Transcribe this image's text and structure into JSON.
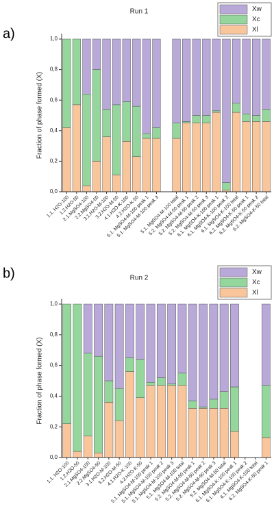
{
  "chart_data": [
    {
      "type": "stacked_bar",
      "panel_label": "a)",
      "title": "Run 1",
      "y_label": "Fraction of phase formed (X)",
      "categories": [
        "1.1. H2O-100",
        "1.2.H2O-50",
        "2.1.MgSO4-100",
        "2.2.MgSO4-50",
        "3.1.H2O-M-100",
        "3.2.H2O-M-50",
        "4.1.H2O-K-100",
        "4.2.H2O-K-50",
        "5.1. MgSO4-M-100 peak 1",
        "5.1. MgSO4-M-100 peak 3",
        null,
        "5.1. MgSO4-M-100 total",
        "5.2. MgSO4-M-50 peak 1",
        "5.2. MgSO4-M-50 peak 2",
        "5.2. MgSO4-M-50 peak 3",
        "6.1. MgSO4-K-100 peak 1",
        "6.1. MgSO4-K-100 peak 2",
        "6.1. MgSO4-K-100 total",
        "6.2. MgSO4-K-50 peak 1",
        "6.2. MgSO4-K-50 peak 2",
        "6.2. MgSO4-K-50 total"
      ],
      "series": [
        {
          "name": "Xw",
          "color": "#b8a9d9",
          "values": [
            0,
            0,
            0.36,
            0.2,
            0.46,
            0.43,
            0.41,
            0.44,
            0.62,
            0.58,
            null,
            0.55,
            0.54,
            0.5,
            0.5,
            0.47,
            0.94,
            0.42,
            0.49,
            0.5,
            0.46
          ]
        },
        {
          "name": "Xc",
          "color": "#95d69d",
          "values": [
            0.58,
            0.43,
            0.6,
            0.6,
            0.18,
            0.46,
            0.26,
            0.33,
            0.03,
            0.07,
            null,
            0.1,
            0.01,
            0.05,
            0.05,
            0.01,
            0.05,
            0.06,
            0.05,
            0.04,
            0.08
          ]
        },
        {
          "name": "Xl",
          "color": "#f9c59b",
          "values": [
            0.42,
            0.57,
            0.04,
            0.2,
            0.36,
            0.11,
            0.33,
            0.23,
            0.35,
            0.35,
            null,
            0.35,
            0.45,
            0.45,
            0.45,
            0.52,
            0.01,
            0.52,
            0.46,
            0.46,
            0.46
          ]
        }
      ],
      "ylim": [
        0,
        1
      ],
      "yticks": [
        {
          "value": 0,
          "label": "0,0"
        },
        {
          "value": 0.2,
          "label": "0,2"
        },
        {
          "value": 0.4,
          "label": "0,4"
        },
        {
          "value": 0.6,
          "label": "0,6"
        },
        {
          "value": 0.8,
          "label": "0,8"
        },
        {
          "value": 1,
          "label": "1,0"
        }
      ]
    },
    {
      "type": "stacked_bar",
      "panel_label": "b)",
      "title": "Run 2",
      "y_label": "Fraction of phase formed (X)",
      "categories": [
        "1.1. H2O-100",
        "1.2.H2O-50",
        "2.1.MgSO4-100",
        "2.2.MgSO4-50",
        "3.1.H2O-M-100",
        "3.2.H2O-M-50",
        "4.1.H2O-K-100",
        "4.2.H2O-K-50",
        "5.1. MgSO4-M-100 peak 1",
        "5.1. MgSO4-M-100 peak 2",
        "5.1. MgSO4-M-100 peak 3",
        "5.1. MgSO4-M-100 total",
        "5.2. MgSO4-M-50 peak 1",
        "5.2. MgSO4-M-50 peak 2",
        "5.2. MgSO4-M-50 peak 3",
        "5.2. MgSO4-M-50 total",
        "6.1. MgSO4-K-100 peak 1",
        "6.1. MgSO4-K-100 peak 2",
        "6.1. MgSO4-K-100 total",
        "6.2. MgSO4-K-50 peak 1"
      ],
      "series": [
        {
          "name": "Xw",
          "color": "#b8a9d9",
          "values": [
            0,
            0,
            0.32,
            0.34,
            0.5,
            0.55,
            0.35,
            0.36,
            0.51,
            0.48,
            0.52,
            0.45,
            0.63,
            0.67,
            0.62,
            0.57,
            0.54,
            null,
            null,
            0.53
          ]
        },
        {
          "name": "Xc",
          "color": "#95d69d",
          "values": [
            0.78,
            0.96,
            0.54,
            0.63,
            0.14,
            0.21,
            0.09,
            0.25,
            0.02,
            0.05,
            0.01,
            0.08,
            0.05,
            0.01,
            0.06,
            0.11,
            0.29,
            null,
            null,
            0.34
          ]
        },
        {
          "name": "Xl",
          "color": "#f9c59b",
          "values": [
            0.22,
            0.04,
            0.14,
            0.03,
            0.36,
            0.24,
            0.56,
            0.39,
            0.47,
            0.47,
            0.47,
            0.47,
            0.32,
            0.32,
            0.32,
            0.32,
            0.17,
            null,
            null,
            0.13
          ]
        }
      ],
      "ylim": [
        0,
        1
      ],
      "yticks": [
        {
          "value": 0,
          "label": "0,0"
        },
        {
          "value": 0.2,
          "label": "0,2"
        },
        {
          "value": 0.4,
          "label": "0,4"
        },
        {
          "value": 0.6,
          "label": "0,6"
        },
        {
          "value": 0.8,
          "label": "0,8"
        },
        {
          "value": 1,
          "label": "1,0"
        }
      ]
    }
  ]
}
